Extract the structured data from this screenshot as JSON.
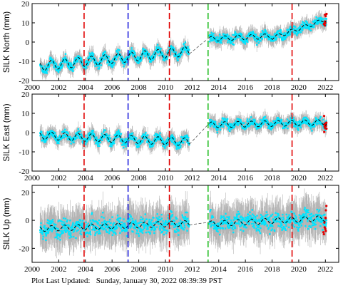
{
  "footer": {
    "prefix": "Plot Last Updated:",
    "value": "Sunday, January 30, 2022 08:39:39 PST"
  },
  "chart_data": [
    {
      "type": "scatter",
      "ylabel": "SILK North (mm)",
      "xlim": [
        2000,
        2023
      ],
      "ylim": [
        -20,
        20
      ],
      "xticks": [
        2000,
        2002,
        2004,
        2006,
        2008,
        2010,
        2012,
        2014,
        2016,
        2018,
        2020,
        2022
      ],
      "yticks": [
        -20,
        -10,
        0,
        10,
        20
      ],
      "colors": {
        "points": "#00e5ff",
        "errorbars": "#b3b3b3",
        "model": "#000000",
        "outliers": "#e00000"
      },
      "segments": [
        {
          "start": 2000.6,
          "end": 2011.8,
          "offset": -12.5,
          "rate": 0.7,
          "amplitude": 2.5
        },
        {
          "start": 2013.3,
          "end": 2018.0,
          "offset": 1.6,
          "rate": 0.32,
          "amplitude": 1.3
        },
        {
          "start": 2018.0,
          "end": 2022.1,
          "offset": 2.2,
          "rate": 2.35,
          "amplitude": 1.0
        }
      ],
      "events": [
        {
          "year": 2003.9,
          "color": "#e00000"
        },
        {
          "year": 2007.2,
          "color": "#2222dd"
        },
        {
          "year": 2010.3,
          "color": "#e00000"
        },
        {
          "year": 2013.2,
          "color": "#22bb22"
        },
        {
          "year": 2019.5,
          "color": "#e00000"
        }
      ]
    },
    {
      "type": "scatter",
      "ylabel": "SILK East (mm)",
      "xlim": [
        2000,
        2023
      ],
      "ylim": [
        -20,
        20
      ],
      "xticks": [
        2000,
        2002,
        2004,
        2006,
        2008,
        2010,
        2012,
        2014,
        2016,
        2018,
        2020,
        2022
      ],
      "yticks": [
        -20,
        -10,
        0,
        10,
        20
      ],
      "colors": {
        "points": "#00e5ff",
        "errorbars": "#b3b3b3",
        "model": "#000000",
        "outliers": "#e00000"
      },
      "segments": [
        {
          "start": 2000.6,
          "end": 2011.8,
          "offset": -1.5,
          "rate": -0.3,
          "amplitude": 2.0
        },
        {
          "start": 2013.3,
          "end": 2022.1,
          "offset": 4.0,
          "rate": 0.15,
          "amplitude": 1.5
        }
      ],
      "events": [
        {
          "year": 2003.9,
          "color": "#e00000"
        },
        {
          "year": 2007.2,
          "color": "#2222dd"
        },
        {
          "year": 2010.3,
          "color": "#e00000"
        },
        {
          "year": 2013.2,
          "color": "#22bb22"
        },
        {
          "year": 2019.5,
          "color": "#e00000"
        }
      ]
    },
    {
      "type": "scatter",
      "ylabel": "SILK Up (mm)",
      "xlim": [
        2000,
        2023
      ],
      "ylim": [
        -30,
        25
      ],
      "xticks": [
        2000,
        2002,
        2004,
        2006,
        2008,
        2010,
        2012,
        2014,
        2016,
        2018,
        2020,
        2022
      ],
      "yticks": [
        -20,
        0,
        20
      ],
      "colors": {
        "points": "#00e5ff",
        "errorbars": "#b3b3b3",
        "model": "#000000",
        "outliers": "#e00000"
      },
      "segments": [
        {
          "start": 2000.6,
          "end": 2011.8,
          "offset": -6.0,
          "rate": 0.35,
          "amplitude": 2.0
        },
        {
          "start": 2013.3,
          "end": 2022.1,
          "offset": -2.5,
          "rate": 0.45,
          "amplitude": 2.0
        }
      ],
      "events": [
        {
          "year": 2003.9,
          "color": "#e00000"
        },
        {
          "year": 2007.2,
          "color": "#2222dd"
        },
        {
          "year": 2010.3,
          "color": "#e00000"
        },
        {
          "year": 2013.2,
          "color": "#22bb22"
        },
        {
          "year": 2019.5,
          "color": "#e00000"
        }
      ]
    }
  ]
}
